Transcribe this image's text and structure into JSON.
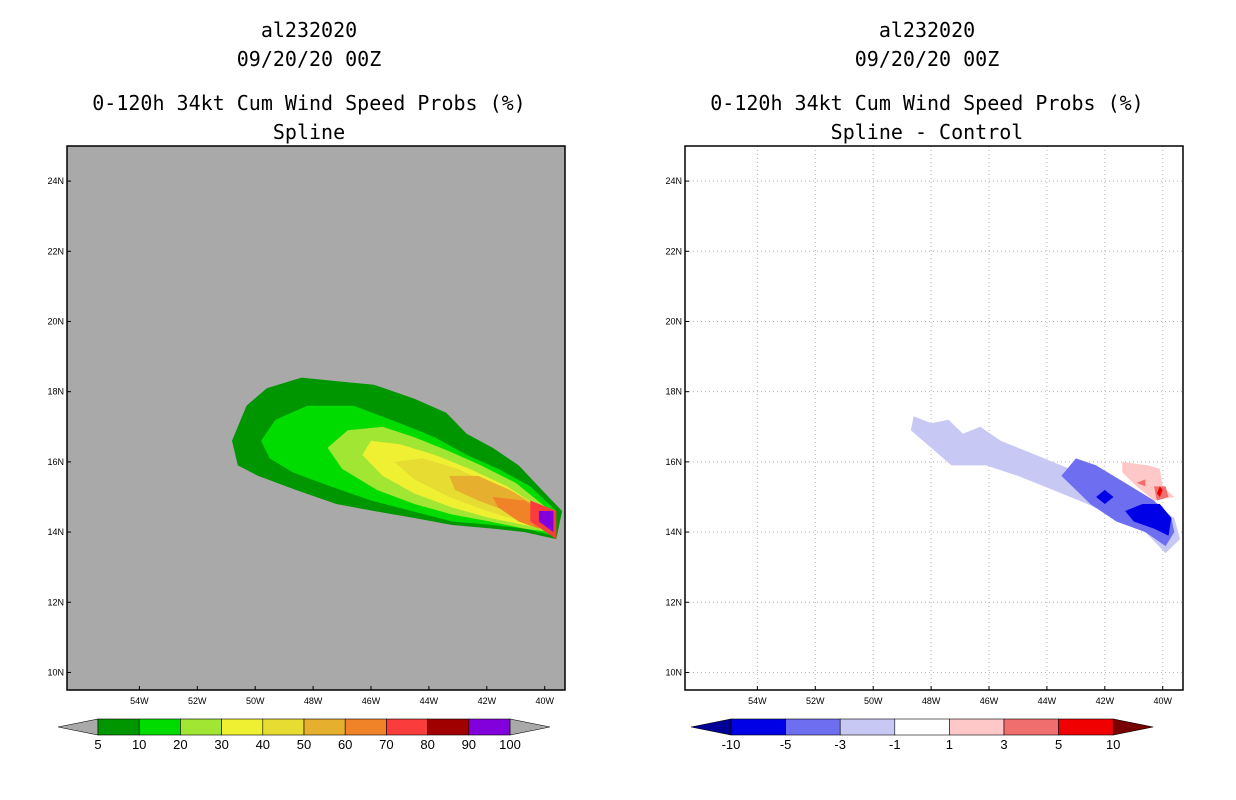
{
  "panels": [
    {
      "storm_id": "al232020",
      "datetime": "09/20/20 00Z",
      "title": "0-120h 34kt Cum Wind Speed Probs (%)",
      "subtitle": "Spline"
    },
    {
      "storm_id": "al232020",
      "datetime": "09/20/20 00Z",
      "title": "0-120h 34kt Cum Wind Speed Probs (%)",
      "subtitle": "Spline - Control"
    }
  ],
  "chart_data": [
    {
      "type": "heatmap",
      "title": "0-120h 34kt Cum Wind Speed Probs (%)",
      "subtitle": "Spline",
      "background_color": "#a9a9a9",
      "grid": false,
      "xlim": [
        -56.5,
        -39.3
      ],
      "ylim": [
        9.5,
        25
      ],
      "x_ticks": [
        -54,
        -52,
        -50,
        -48,
        -46,
        -44,
        -42,
        -40
      ],
      "x_tick_labels": [
        "54W",
        "52W",
        "50W",
        "48W",
        "46W",
        "44W",
        "42W",
        "40W"
      ],
      "y_ticks": [
        10,
        12,
        14,
        16,
        18,
        20,
        22,
        24
      ],
      "y_tick_labels": [
        "10N",
        "12N",
        "14N",
        "16N",
        "18N",
        "20N",
        "22N",
        "24N"
      ],
      "colorbar": {
        "labels": [
          "5",
          "10",
          "20",
          "30",
          "40",
          "50",
          "60",
          "70",
          "80",
          "90",
          "100"
        ],
        "colors": [
          "#009600",
          "#00dc00",
          "#a0e632",
          "#f0f032",
          "#e6dc32",
          "#e6af2d",
          "#f08228",
          "#fa3c3c",
          "#a00000",
          "#8200dc"
        ],
        "end_color": "#a9a9a9"
      },
      "contours": [
        {
          "level": 5,
          "color": "#009600",
          "points": [
            [
              -50.8,
              16.6
            ],
            [
              -50.3,
              17.6
            ],
            [
              -49.6,
              18.1
            ],
            [
              -48.4,
              18.4
            ],
            [
              -47.2,
              18.3
            ],
            [
              -45.9,
              18.2
            ],
            [
              -44.5,
              17.8
            ],
            [
              -43.4,
              17.4
            ],
            [
              -42.7,
              16.8
            ],
            [
              -41.8,
              16.4
            ],
            [
              -40.9,
              15.9
            ],
            [
              -40.1,
              15.2
            ],
            [
              -39.4,
              14.6
            ],
            [
              -39.6,
              13.8
            ],
            [
              -40.7,
              14.0
            ],
            [
              -41.8,
              14.1
            ],
            [
              -43.2,
              14.2
            ],
            [
              -44.5,
              14.4
            ],
            [
              -45.9,
              14.6
            ],
            [
              -47.2,
              14.8
            ],
            [
              -48.6,
              15.2
            ],
            [
              -49.9,
              15.6
            ],
            [
              -50.6,
              15.9
            ]
          ]
        },
        {
          "level": 10,
          "color": "#00dc00",
          "points": [
            [
              -49.8,
              16.6
            ],
            [
              -49.3,
              17.2
            ],
            [
              -48.2,
              17.6
            ],
            [
              -46.6,
              17.6
            ],
            [
              -45.0,
              17.1
            ],
            [
              -43.8,
              16.7
            ],
            [
              -42.7,
              16.2
            ],
            [
              -41.6,
              15.8
            ],
            [
              -40.5,
              15.3
            ],
            [
              -39.6,
              14.6
            ],
            [
              -39.7,
              13.9
            ],
            [
              -40.7,
              14.1
            ],
            [
              -41.8,
              14.2
            ],
            [
              -43.2,
              14.3
            ],
            [
              -44.6,
              14.6
            ],
            [
              -46.0,
              14.9
            ],
            [
              -47.4,
              15.3
            ],
            [
              -48.7,
              15.7
            ],
            [
              -49.5,
              16.1
            ]
          ]
        },
        {
          "level": 20,
          "color": "#a0e632",
          "points": [
            [
              -47.5,
              16.4
            ],
            [
              -46.8,
              16.9
            ],
            [
              -45.6,
              17.0
            ],
            [
              -44.5,
              16.7
            ],
            [
              -43.3,
              16.3
            ],
            [
              -42.2,
              15.9
            ],
            [
              -41.0,
              15.4
            ],
            [
              -39.8,
              14.6
            ],
            [
              -39.8,
              14.0
            ],
            [
              -40.7,
              14.1
            ],
            [
              -41.9,
              14.3
            ],
            [
              -43.2,
              14.5
            ],
            [
              -44.5,
              14.8
            ],
            [
              -45.8,
              15.2
            ],
            [
              -47.0,
              15.8
            ]
          ]
        },
        {
          "level": 30,
          "color": "#f0f032",
          "points": [
            [
              -46.3,
              16.2
            ],
            [
              -46.0,
              16.6
            ],
            [
              -45.0,
              16.5
            ],
            [
              -43.8,
              16.2
            ],
            [
              -42.6,
              15.8
            ],
            [
              -41.3,
              15.3
            ],
            [
              -40.0,
              14.6
            ],
            [
              -39.9,
              14.1
            ],
            [
              -40.7,
              14.2
            ],
            [
              -41.9,
              14.4
            ],
            [
              -43.2,
              14.7
            ],
            [
              -44.5,
              15.1
            ],
            [
              -45.6,
              15.6
            ]
          ]
        },
        {
          "level": 40,
          "color": "#e6dc32",
          "points": [
            [
              -45.2,
              16.0
            ],
            [
              -44.2,
              16.1
            ],
            [
              -43.0,
              15.8
            ],
            [
              -41.7,
              15.3
            ],
            [
              -40.4,
              14.7
            ],
            [
              -39.9,
              14.3
            ],
            [
              -40.8,
              14.3
            ],
            [
              -42.0,
              14.6
            ],
            [
              -43.3,
              15.0
            ],
            [
              -44.5,
              15.5
            ]
          ]
        },
        {
          "level": 50,
          "color": "#e6af2d",
          "points": [
            [
              -43.3,
              15.6
            ],
            [
              -42.3,
              15.6
            ],
            [
              -41.2,
              15.2
            ],
            [
              -40.2,
              14.7
            ],
            [
              -40.0,
              14.4
            ],
            [
              -41.0,
              14.5
            ],
            [
              -42.3,
              14.9
            ],
            [
              -43.1,
              15.2
            ]
          ]
        },
        {
          "level": 60,
          "color": "#f08228",
          "points": [
            [
              -41.8,
              15.0
            ],
            [
              -40.7,
              14.9
            ],
            [
              -39.9,
              14.5
            ],
            [
              -40.2,
              14.1
            ],
            [
              -40.9,
              14.3
            ],
            [
              -41.6,
              14.7
            ]
          ]
        },
        {
          "level": 70,
          "color": "#fa3c3c",
          "points": [
            [
              -40.5,
              14.9
            ],
            [
              -39.6,
              14.6
            ],
            [
              -39.6,
              13.8
            ],
            [
              -40.5,
              14.3
            ]
          ]
        },
        {
          "level": 90,
          "color": "#8200dc",
          "points": [
            [
              -40.2,
              14.6
            ],
            [
              -39.7,
              14.6
            ],
            [
              -39.7,
              14.0
            ],
            [
              -40.2,
              14.3
            ]
          ]
        }
      ]
    },
    {
      "type": "heatmap",
      "title": "0-120h 34kt Cum Wind Speed Probs (%)",
      "subtitle": "Spline - Control",
      "background_color": "#ffffff",
      "grid": true,
      "xlim": [
        -56.5,
        -39.3
      ],
      "ylim": [
        9.5,
        25
      ],
      "x_ticks": [
        -54,
        -52,
        -50,
        -48,
        -46,
        -44,
        -42,
        -40
      ],
      "x_tick_labels": [
        "54W",
        "52W",
        "50W",
        "48W",
        "46W",
        "44W",
        "42W",
        "40W"
      ],
      "y_ticks": [
        10,
        12,
        14,
        16,
        18,
        20,
        22,
        24
      ],
      "y_tick_labels": [
        "10N",
        "12N",
        "14N",
        "16N",
        "18N",
        "20N",
        "22N",
        "24N"
      ],
      "colorbar": {
        "labels": [
          "-10",
          "-5",
          "-3",
          "-1",
          "1",
          "3",
          "5",
          "10"
        ],
        "colors": [
          "#0000e6",
          "#6e6ef0",
          "#c8c8f5",
          "#ffffff",
          "#ffc8c8",
          "#f06e6e",
          "#f00000"
        ],
        "low_end_color": "#000096",
        "high_end_color": "#780000"
      },
      "contours": [
        {
          "level": -1,
          "color": "#c8c8f5",
          "points": [
            [
              -48.6,
              17.3
            ],
            [
              -48.0,
              17.1
            ],
            [
              -47.4,
              17.2
            ],
            [
              -46.9,
              16.8
            ],
            [
              -46.3,
              17.0
            ],
            [
              -45.6,
              16.6
            ],
            [
              -44.7,
              16.3
            ],
            [
              -43.8,
              16.0
            ],
            [
              -42.6,
              15.6
            ],
            [
              -41.3,
              15.2
            ],
            [
              -40.3,
              14.8
            ],
            [
              -39.6,
              14.4
            ],
            [
              -39.4,
              13.8
            ],
            [
              -39.9,
              13.4
            ],
            [
              -40.6,
              14.0
            ],
            [
              -41.6,
              14.4
            ],
            [
              -42.6,
              14.8
            ],
            [
              -43.8,
              15.2
            ],
            [
              -45.0,
              15.6
            ],
            [
              -46.1,
              15.9
            ],
            [
              -47.3,
              15.9
            ],
            [
              -48.0,
              16.4
            ],
            [
              -48.7,
              16.9
            ]
          ]
        },
        {
          "level": -3,
          "color": "#6e6ef0",
          "points": [
            [
              -43.0,
              16.1
            ],
            [
              -42.3,
              15.9
            ],
            [
              -41.3,
              15.4
            ],
            [
              -40.3,
              14.9
            ],
            [
              -39.7,
              14.4
            ],
            [
              -39.6,
              14.0
            ],
            [
              -39.9,
              13.6
            ],
            [
              -40.6,
              14.0
            ],
            [
              -41.6,
              14.3
            ],
            [
              -42.5,
              14.8
            ],
            [
              -43.0,
              15.2
            ],
            [
              -43.5,
              15.6
            ]
          ]
        },
        {
          "level": -5,
          "color": "#0000e6",
          "points": [
            [
              -40.7,
              14.8
            ],
            [
              -40.1,
              14.8
            ],
            [
              -39.7,
              14.4
            ],
            [
              -39.8,
              13.9
            ],
            [
              -40.3,
              14.1
            ],
            [
              -41.0,
              14.3
            ],
            [
              -41.3,
              14.6
            ]
          ]
        },
        {
          "level": -5,
          "color": "#0000e6",
          "points": [
            [
              -42.3,
              15.0
            ],
            [
              -42.0,
              15.2
            ],
            [
              -41.7,
              15.0
            ],
            [
              -42.0,
              14.8
            ]
          ]
        },
        {
          "level": 1,
          "color": "#ffc8c8",
          "points": [
            [
              -41.4,
              16.0
            ],
            [
              -40.5,
              15.9
            ],
            [
              -40.1,
              15.8
            ],
            [
              -40.0,
              15.3
            ],
            [
              -39.6,
              15.0
            ],
            [
              -40.3,
              14.9
            ],
            [
              -40.9,
              15.3
            ],
            [
              -41.4,
              15.7
            ]
          ]
        },
        {
          "level": 3,
          "color": "#f06e6e",
          "points": [
            [
              -40.9,
              15.4
            ],
            [
              -40.6,
              15.5
            ],
            [
              -40.6,
              15.3
            ]
          ]
        },
        {
          "level": 3,
          "color": "#f06e6e",
          "points": [
            [
              -40.3,
              15.3
            ],
            [
              -39.9,
              15.3
            ],
            [
              -39.8,
              15.0
            ],
            [
              -40.2,
              14.9
            ]
          ]
        },
        {
          "level": 5,
          "color": "#f00000",
          "points": [
            [
              -40.1,
              15.3
            ],
            [
              -40.0,
              15.2
            ],
            [
              -40.1,
              15.0
            ],
            [
              -40.2,
              15.1
            ]
          ]
        }
      ]
    }
  ]
}
